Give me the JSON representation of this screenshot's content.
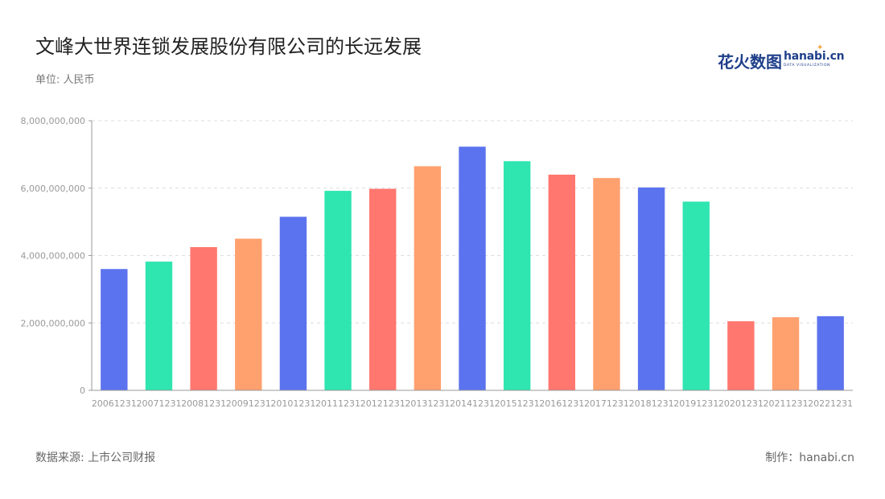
{
  "header": {
    "title": "文峰大世界连锁发展股份有限公司的长远发展",
    "unit": "单位: 人民币"
  },
  "brand": {
    "cn": "花火数图",
    "en": "hanabi.cn",
    "sub": "DATA VISUALIZATION"
  },
  "footer": {
    "source": "数据来源: 上市公司财报",
    "maker": "制作：hanabi.cn"
  },
  "colors": {
    "palette": [
      "#5b73ee",
      "#2fe5b0",
      "#ff776f",
      "#ffa06f"
    ],
    "grid": "#dddddd",
    "axis": "#999999",
    "tick_text": "#999999"
  },
  "chart_data": {
    "type": "bar",
    "categories": [
      "20061231",
      "20071231",
      "20081231",
      "20091231",
      "20101231",
      "20111231",
      "20121231",
      "20131231",
      "20141231",
      "20151231",
      "20161231",
      "20171231",
      "20181231",
      "20191231",
      "20201231",
      "20211231",
      "20221231"
    ],
    "values": [
      3600000000,
      3820000000,
      4250000000,
      4500000000,
      5150000000,
      5920000000,
      5980000000,
      6650000000,
      7230000000,
      6800000000,
      6400000000,
      6300000000,
      6020000000,
      5600000000,
      2050000000,
      2170000000,
      2200000000
    ],
    "ylim": [
      0,
      8000000000
    ],
    "yticks": [
      0,
      2000000000,
      4000000000,
      6000000000,
      8000000000
    ],
    "ytick_labels": [
      "0",
      "2,000,000,000",
      "4,000,000,000",
      "6,000,000,000",
      "8,000,000,000"
    ],
    "grid": true,
    "legend": "none"
  }
}
